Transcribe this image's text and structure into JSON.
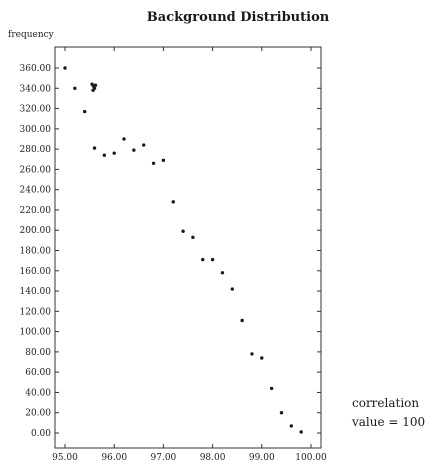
{
  "chart_data": {
    "type": "scatter",
    "title": "Background Distribution",
    "ylabel": "frequency",
    "xlabel": "",
    "xlim": [
      95.0,
      100.0
    ],
    "ylim": [
      0.0,
      360.0
    ],
    "x_ticks": [
      95.0,
      96.0,
      97.0,
      98.0,
      99.0,
      100.0
    ],
    "x_tick_labels": [
      "95.00",
      "96.00",
      "97.00",
      "98.00",
      "99.00",
      "100.00"
    ],
    "y_ticks": [
      0,
      20,
      40,
      60,
      80,
      100,
      120,
      140,
      160,
      180,
      200,
      220,
      240,
      260,
      280,
      300,
      320,
      340,
      360
    ],
    "y_tick_labels": [
      "0.00",
      "20.00",
      "40.00",
      "60.00",
      "80.00",
      "100.00",
      "120.00",
      "140.00",
      "160.00",
      "180.00",
      "200.00",
      "220.00",
      "240.00",
      "260.00",
      "280.00",
      "300.00",
      "320.00",
      "340.00",
      "360.00"
    ],
    "grid": false,
    "annotation": [
      "correlation",
      "value = 100"
    ],
    "points": [
      {
        "x": 95.0,
        "y": 360
      },
      {
        "x": 95.2,
        "y": 340
      },
      {
        "x": 95.4,
        "y": 317
      },
      {
        "x": 95.55,
        "y": 344
      },
      {
        "x": 95.58,
        "y": 342
      },
      {
        "x": 95.6,
        "y": 340
      },
      {
        "x": 95.57,
        "y": 338
      },
      {
        "x": 95.62,
        "y": 343
      },
      {
        "x": 95.6,
        "y": 281
      },
      {
        "x": 95.8,
        "y": 274
      },
      {
        "x": 96.0,
        "y": 276
      },
      {
        "x": 96.2,
        "y": 290
      },
      {
        "x": 96.4,
        "y": 279
      },
      {
        "x": 96.6,
        "y": 284
      },
      {
        "x": 96.8,
        "y": 266
      },
      {
        "x": 97.0,
        "y": 269
      },
      {
        "x": 97.2,
        "y": 228
      },
      {
        "x": 97.4,
        "y": 199
      },
      {
        "x": 97.6,
        "y": 193
      },
      {
        "x": 97.8,
        "y": 171
      },
      {
        "x": 98.0,
        "y": 171
      },
      {
        "x": 98.2,
        "y": 158
      },
      {
        "x": 98.4,
        "y": 142
      },
      {
        "x": 98.6,
        "y": 111
      },
      {
        "x": 98.8,
        "y": 78
      },
      {
        "x": 99.0,
        "y": 74
      },
      {
        "x": 99.2,
        "y": 44
      },
      {
        "x": 99.4,
        "y": 20
      },
      {
        "x": 99.6,
        "y": 7
      },
      {
        "x": 99.8,
        "y": 1
      }
    ]
  }
}
